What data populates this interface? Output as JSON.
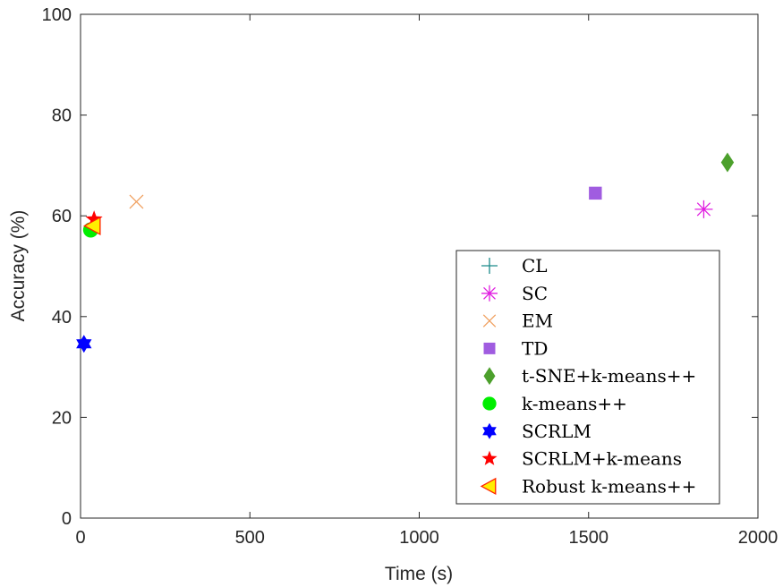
{
  "chart_data": {
    "type": "scatter",
    "xlabel": "Time (s)",
    "ylabel": "Accuracy (%)",
    "xlim": [
      0,
      2000
    ],
    "ylim": [
      0,
      100
    ],
    "xticks": [
      "0",
      "500",
      "1000",
      "1500",
      "2000"
    ],
    "yticks": [
      "0",
      "20",
      "40",
      "60",
      "80",
      "100"
    ],
    "grid": false,
    "legend_position": "lower-right",
    "series": [
      {
        "name": "CL",
        "marker": "plus",
        "color": "#1b8a8a",
        "points": []
      },
      {
        "name": "SC",
        "marker": "asterisk",
        "color": "#e020e0",
        "points": [
          {
            "x": 1840,
            "y": 61.3
          }
        ]
      },
      {
        "name": "EM",
        "marker": "x",
        "color": "#f0a060",
        "points": [
          {
            "x": 165,
            "y": 62.8
          }
        ]
      },
      {
        "name": "TD",
        "marker": "square",
        "color": "#a05ce0",
        "points": [
          {
            "x": 1520,
            "y": 64.5
          }
        ]
      },
      {
        "name": "t-SNE+k-means++",
        "marker": "diamond",
        "color": "#4ca02c",
        "points": [
          {
            "x": 1910,
            "y": 70.6
          }
        ]
      },
      {
        "name": "k-means++",
        "marker": "circle",
        "color": "#00ee00",
        "points": [
          {
            "x": 30,
            "y": 57.2
          }
        ]
      },
      {
        "name": "SCRLM",
        "marker": "hexagram",
        "color": "#0000ff",
        "points": [
          {
            "x": 10,
            "y": 34.6
          }
        ]
      },
      {
        "name": "SCRLM+k-means",
        "marker": "pentagram",
        "color": "#ff0000",
        "points": [
          {
            "x": 40,
            "y": 59.3
          }
        ]
      },
      {
        "name": "Robust k-means++",
        "marker": "triangle-left",
        "color": "#ffee00",
        "edge": "#ff2200",
        "points": [
          {
            "x": 38,
            "y": 58.0
          }
        ]
      }
    ]
  }
}
